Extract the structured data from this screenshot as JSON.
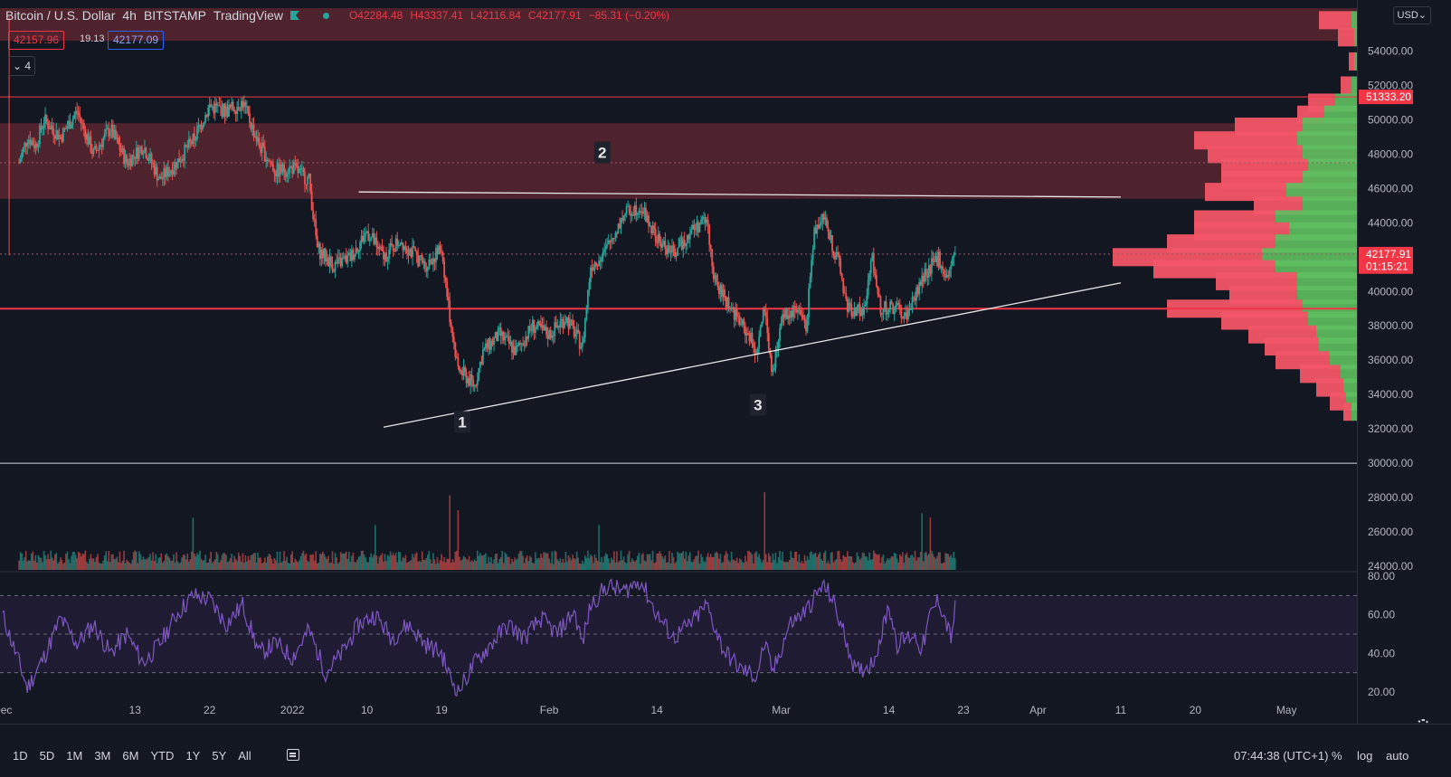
{
  "header": {
    "symbol": "Bitcoin / U.S. Dollar",
    "interval": "4h",
    "exchange": "BITSTAMP",
    "platform": "TradingView",
    "open": "O42284.48",
    "high": "H43337.41",
    "low": "L42116.84",
    "close": "C42177.91",
    "change": "−85.31 (−0.20%)"
  },
  "quote": {
    "bid": "42157.96",
    "spread": "19.13",
    "ask": "42177.09"
  },
  "indicators_collapsed": "4",
  "currency": "USD",
  "colors": {
    "background": "#131722",
    "up": "#26a69a",
    "down": "#ef5350",
    "zone": "#5a2630",
    "support": "#f23645",
    "rsi": "#7e57c2",
    "vp_up": "#5fbf5f",
    "vp_down": "#f25567"
  },
  "chart_data": [
    {
      "type": "candlestick",
      "title": "Bitcoin / U.S. Dollar",
      "ylim": [
        24000,
        56000
      ],
      "y_ticks": [
        "54000.00",
        "52000.00",
        "50000.00",
        "48000.00",
        "46000.00",
        "44000.00",
        "42000.00",
        "40000.00",
        "38000.00",
        "36000.00",
        "34000.00",
        "32000.00",
        "30000.00",
        "28000.00",
        "26000.00",
        "24000.00"
      ],
      "y_tick_values": [
        54000,
        52000,
        50000,
        48000,
        46000,
        44000,
        42000,
        40000,
        38000,
        36000,
        34000,
        32000,
        30000,
        28000,
        26000,
        24000
      ],
      "x_ticks": [
        "Dec",
        "13",
        "22",
        "2022",
        "10",
        "19",
        "Feb",
        "14",
        "Mar",
        "14",
        "23",
        "Apr",
        "11",
        "20",
        "May"
      ],
      "x_tick_days": [
        -3,
        13,
        22,
        32,
        41,
        50,
        63,
        76,
        91,
        104,
        113,
        122,
        132,
        141,
        152
      ],
      "x_range_days": [
        -3.3,
        160.5
      ],
      "last_day": 112,
      "price_path": [
        {
          "d": -1,
          "p": 47500
        },
        {
          "d": 0,
          "p": 49000
        },
        {
          "d": 1,
          "p": 48500
        },
        {
          "d": 2,
          "p": 50000
        },
        {
          "d": 4,
          "p": 49000
        },
        {
          "d": 6,
          "p": 50500
        },
        {
          "d": 8,
          "p": 48000
        },
        {
          "d": 10,
          "p": 49500
        },
        {
          "d": 12,
          "p": 47500
        },
        {
          "d": 14,
          "p": 48500
        },
        {
          "d": 16,
          "p": 46500
        },
        {
          "d": 18,
          "p": 47500
        },
        {
          "d": 20,
          "p": 48800
        },
        {
          "d": 22,
          "p": 50800
        },
        {
          "d": 24,
          "p": 50500
        },
        {
          "d": 26,
          "p": 51000
        },
        {
          "d": 28,
          "p": 48500
        },
        {
          "d": 30,
          "p": 47000
        },
        {
          "d": 32,
          "p": 47200
        },
        {
          "d": 34,
          "p": 46500
        },
        {
          "d": 35,
          "p": 42500
        },
        {
          "d": 37,
          "p": 41500
        },
        {
          "d": 39,
          "p": 42000
        },
        {
          "d": 41,
          "p": 43500
        },
        {
          "d": 43,
          "p": 42000
        },
        {
          "d": 45,
          "p": 43000
        },
        {
          "d": 48,
          "p": 41500
        },
        {
          "d": 50,
          "p": 42500
        },
        {
          "d": 51,
          "p": 38500
        },
        {
          "d": 52,
          "p": 35500
        },
        {
          "d": 54,
          "p": 34500
        },
        {
          "d": 55,
          "p": 36500
        },
        {
          "d": 57,
          "p": 37500
        },
        {
          "d": 59,
          "p": 36500
        },
        {
          "d": 61,
          "p": 38000
        },
        {
          "d": 63,
          "p": 37500
        },
        {
          "d": 65,
          "p": 38500
        },
        {
          "d": 67,
          "p": 36800
        },
        {
          "d": 68,
          "p": 41500
        },
        {
          "d": 70,
          "p": 42500
        },
        {
          "d": 72,
          "p": 44500
        },
        {
          "d": 74,
          "p": 45000
        },
        {
          "d": 76,
          "p": 43000
        },
        {
          "d": 78,
          "p": 42200
        },
        {
          "d": 80,
          "p": 43500
        },
        {
          "d": 82,
          "p": 44200
        },
        {
          "d": 83,
          "p": 40500
        },
        {
          "d": 85,
          "p": 39000
        },
        {
          "d": 87,
          "p": 37500
        },
        {
          "d": 88,
          "p": 36500
        },
        {
          "d": 89,
          "p": 39000
        },
        {
          "d": 90,
          "p": 35000
        },
        {
          "d": 91,
          "p": 38500
        },
        {
          "d": 93,
          "p": 39000
        },
        {
          "d": 94,
          "p": 38000
        },
        {
          "d": 95,
          "p": 43500
        },
        {
          "d": 96,
          "p": 44500
        },
        {
          "d": 98,
          "p": 41500
        },
        {
          "d": 99,
          "p": 39000
        },
        {
          "d": 101,
          "p": 38800
        },
        {
          "d": 102,
          "p": 42000
        },
        {
          "d": 103,
          "p": 39000
        },
        {
          "d": 105,
          "p": 39000
        },
        {
          "d": 106,
          "p": 38500
        },
        {
          "d": 107,
          "p": 39500
        },
        {
          "d": 108,
          "p": 40800
        },
        {
          "d": 110,
          "p": 42000
        },
        {
          "d": 111,
          "p": 40800
        },
        {
          "d": 112,
          "p": 42178
        }
      ],
      "volume_spikes": [
        {
          "d": -2.2,
          "v": 0.95
        },
        {
          "d": 20,
          "v": 0.35
        },
        {
          "d": 42,
          "v": 0.3
        },
        {
          "d": 51,
          "v": 0.5
        },
        {
          "d": 52,
          "v": 0.4
        },
        {
          "d": 69,
          "v": 0.3
        },
        {
          "d": 89,
          "v": 0.52
        },
        {
          "d": 108,
          "v": 0.38
        },
        {
          "d": 109,
          "v": 0.35
        }
      ],
      "annotations": [
        {
          "label": "1",
          "d": 52.5,
          "p": 32400
        },
        {
          "label": "2",
          "d": 69.4,
          "p": 48100
        },
        {
          "label": "3",
          "d": 88.2,
          "p": 33400
        }
      ],
      "trendlines": [
        {
          "from": {
            "d": 40,
            "p": 45800
          },
          "to": {
            "d": 132,
            "p": 45500
          }
        },
        {
          "from": {
            "d": 43,
            "p": 32100
          },
          "to": {
            "d": 132,
            "p": 40500
          }
        }
      ],
      "levels": [
        {
          "p": 51333.2,
          "color": "#f23645",
          "width": 1
        },
        {
          "p": 39000,
          "color": "#f23645",
          "width": 2
        },
        {
          "p": 30000,
          "color": "#d1d4dc",
          "width": 1
        },
        {
          "p": 47500,
          "color": "#9b5a64",
          "width": 1,
          "dash": true
        },
        {
          "p": 42177.91,
          "color": "#9b5a64",
          "width": 1,
          "dash": true
        }
      ],
      "zones": [
        {
          "from": 54600,
          "to": 56500
        },
        {
          "from": 45400,
          "to": 49800
        }
      ],
      "price_labels": [
        {
          "text": "51333.20",
          "p": 51333.2,
          "bg": "#f23645"
        },
        {
          "text": "42177.91",
          "p": 42177.91,
          "bg": "#f23645"
        },
        {
          "text": "01:15:21",
          "p": 41450,
          "bg": "#f23645"
        }
      ],
      "volume_profile": [
        {
          "p": 55800,
          "up": 0.02,
          "down": 0.12
        },
        {
          "p": 54800,
          "up": 0.01,
          "down": 0.06
        },
        {
          "p": 53400,
          "up": 0.01,
          "down": 0.02
        },
        {
          "p": 52000,
          "up": 0.02,
          "down": 0.04
        },
        {
          "p": 51000,
          "up": 0.08,
          "down": 0.1
        },
        {
          "p": 50300,
          "up": 0.12,
          "down": 0.1
        },
        {
          "p": 49600,
          "up": 0.2,
          "down": 0.25
        },
        {
          "p": 48800,
          "up": 0.22,
          "down": 0.38
        },
        {
          "p": 48000,
          "up": 0.2,
          "down": 0.35
        },
        {
          "p": 47200,
          "up": 0.18,
          "down": 0.32
        },
        {
          "p": 46500,
          "up": 0.2,
          "down": 0.3
        },
        {
          "p": 45800,
          "up": 0.26,
          "down": 0.3
        },
        {
          "p": 45000,
          "up": 0.2,
          "down": 0.18
        },
        {
          "p": 44200,
          "up": 0.3,
          "down": 0.3
        },
        {
          "p": 43500,
          "up": 0.25,
          "down": 0.35
        },
        {
          "p": 42800,
          "up": 0.3,
          "down": 0.4
        },
        {
          "p": 42000,
          "up": 0.35,
          "down": 0.55
        },
        {
          "p": 41300,
          "up": 0.3,
          "down": 0.45
        },
        {
          "p": 40600,
          "up": 0.22,
          "down": 0.3
        },
        {
          "p": 39800,
          "up": 0.22,
          "down": 0.25
        },
        {
          "p": 39000,
          "up": 0.2,
          "down": 0.5
        },
        {
          "p": 38300,
          "up": 0.18,
          "down": 0.32
        },
        {
          "p": 37500,
          "up": 0.15,
          "down": 0.25
        },
        {
          "p": 36800,
          "up": 0.14,
          "down": 0.2
        },
        {
          "p": 36000,
          "up": 0.1,
          "down": 0.2
        },
        {
          "p": 35200,
          "up": 0.06,
          "down": 0.15
        },
        {
          "p": 34400,
          "up": 0.05,
          "down": 0.1
        },
        {
          "p": 33600,
          "up": 0.04,
          "down": 0.06
        },
        {
          "p": 33000,
          "up": 0.02,
          "down": 0.03
        }
      ]
    },
    {
      "type": "line",
      "title": "RSI",
      "ylim": [
        17,
        82
      ],
      "y_ticks": [
        "80.00",
        "60.00",
        "40.00",
        "20.00"
      ],
      "y_tick_values": [
        80,
        60,
        40,
        20
      ],
      "bands": [
        70,
        50,
        30
      ],
      "rsi_path": [
        {
          "d": -3,
          "v": 60
        },
        {
          "d": -1,
          "v": 35
        },
        {
          "d": 0,
          "v": 22
        },
        {
          "d": 2,
          "v": 38
        },
        {
          "d": 4,
          "v": 58
        },
        {
          "d": 6,
          "v": 45
        },
        {
          "d": 8,
          "v": 55
        },
        {
          "d": 10,
          "v": 40
        },
        {
          "d": 12,
          "v": 50
        },
        {
          "d": 14,
          "v": 35
        },
        {
          "d": 16,
          "v": 45
        },
        {
          "d": 18,
          "v": 60
        },
        {
          "d": 20,
          "v": 70
        },
        {
          "d": 22,
          "v": 68
        },
        {
          "d": 24,
          "v": 55
        },
        {
          "d": 26,
          "v": 65
        },
        {
          "d": 28,
          "v": 40
        },
        {
          "d": 30,
          "v": 45
        },
        {
          "d": 32,
          "v": 38
        },
        {
          "d": 34,
          "v": 52
        },
        {
          "d": 36,
          "v": 30
        },
        {
          "d": 38,
          "v": 40
        },
        {
          "d": 40,
          "v": 55
        },
        {
          "d": 42,
          "v": 60
        },
        {
          "d": 44,
          "v": 48
        },
        {
          "d": 46,
          "v": 55
        },
        {
          "d": 48,
          "v": 45
        },
        {
          "d": 50,
          "v": 40
        },
        {
          "d": 51,
          "v": 28
        },
        {
          "d": 52,
          "v": 20
        },
        {
          "d": 54,
          "v": 35
        },
        {
          "d": 56,
          "v": 45
        },
        {
          "d": 58,
          "v": 55
        },
        {
          "d": 60,
          "v": 48
        },
        {
          "d": 62,
          "v": 58
        },
        {
          "d": 64,
          "v": 50
        },
        {
          "d": 66,
          "v": 62
        },
        {
          "d": 67,
          "v": 45
        },
        {
          "d": 68,
          "v": 65
        },
        {
          "d": 70,
          "v": 75
        },
        {
          "d": 72,
          "v": 72
        },
        {
          "d": 74,
          "v": 78
        },
        {
          "d": 76,
          "v": 60
        },
        {
          "d": 78,
          "v": 48
        },
        {
          "d": 80,
          "v": 55
        },
        {
          "d": 82,
          "v": 65
        },
        {
          "d": 84,
          "v": 42
        },
        {
          "d": 86,
          "v": 32
        },
        {
          "d": 88,
          "v": 28
        },
        {
          "d": 89,
          "v": 45
        },
        {
          "d": 90,
          "v": 30
        },
        {
          "d": 92,
          "v": 55
        },
        {
          "d": 94,
          "v": 62
        },
        {
          "d": 96,
          "v": 75
        },
        {
          "d": 97,
          "v": 70
        },
        {
          "d": 99,
          "v": 45
        },
        {
          "d": 100,
          "v": 30
        },
        {
          "d": 102,
          "v": 35
        },
        {
          "d": 103,
          "v": 48
        },
        {
          "d": 104,
          "v": 65
        },
        {
          "d": 105,
          "v": 45
        },
        {
          "d": 107,
          "v": 50
        },
        {
          "d": 108,
          "v": 42
        },
        {
          "d": 109,
          "v": 60
        },
        {
          "d": 110,
          "v": 68
        },
        {
          "d": 111,
          "v": 55
        },
        {
          "d": 111.5,
          "v": 48
        },
        {
          "d": 112,
          "v": 63
        }
      ]
    }
  ],
  "bottombar": {
    "timeframes": [
      "1D",
      "5D",
      "1M",
      "3M",
      "6M",
      "YTD",
      "1Y",
      "5Y",
      "All"
    ],
    "clock": "07:44:38 (UTC+1)",
    "percent": "%",
    "log": "log",
    "auto": "auto"
  }
}
